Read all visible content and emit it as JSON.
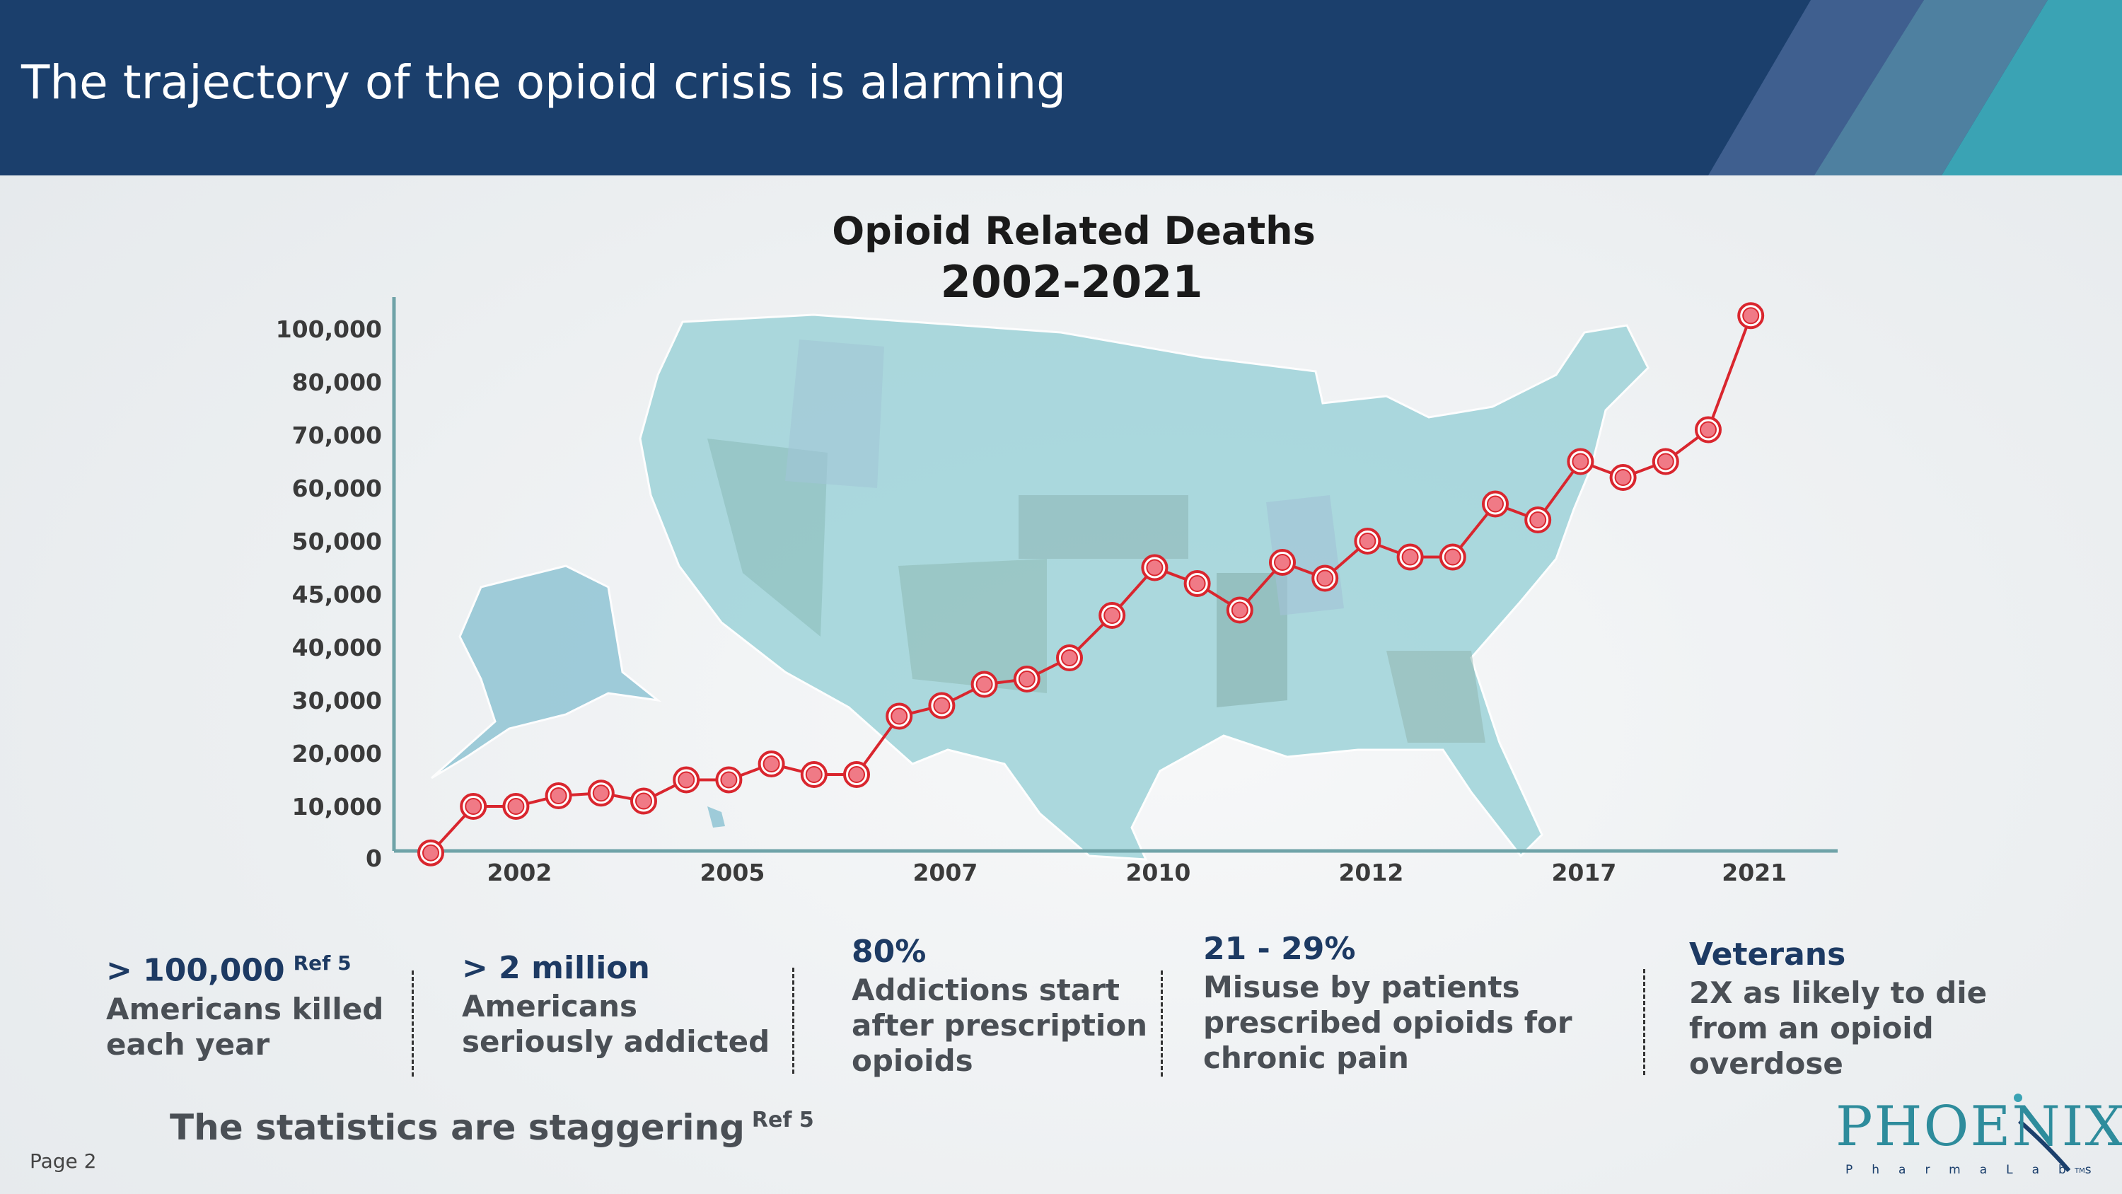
{
  "header": {
    "title": "The trajectory of the opioid crisis is alarming"
  },
  "colors": {
    "header_bg": "#1b3f6c",
    "line": "#d9262e",
    "marker_fill": "#f07a86",
    "axis": "#6fa3a8",
    "map": "#8fcdd3"
  },
  "chart_data": {
    "type": "line",
    "title": "Opioid Related Deaths",
    "subtitle": "2002-2021",
    "background_image": "map-of-united-states",
    "y_ticks": [
      "0",
      "10,000",
      "20,000",
      "30,000",
      "40,000",
      "45,000",
      "50,000",
      "60,000",
      "70,000",
      "80,000",
      "100,000"
    ],
    "x_ticks": [
      "2002",
      "2005",
      "2007",
      "2010",
      "2012",
      "2017",
      "2021"
    ],
    "x_tick_index": [
      2,
      7,
      12,
      17,
      22,
      27,
      31
    ],
    "y_scale": "categorical-ticks (non-linear spacing)",
    "series": [
      {
        "values": [
          1000,
          10000,
          10000,
          12000,
          12500,
          11000,
          15000,
          15000,
          18000,
          16000,
          16000,
          27000,
          29000,
          33000,
          34000,
          38000,
          43000,
          47500,
          46000,
          43500,
          48000,
          46500,
          50000,
          48500,
          48500,
          57000,
          54000,
          65000,
          62000,
          65000,
          71000,
          105000
        ]
      }
    ]
  },
  "stats": [
    {
      "headline": "> 100,000",
      "ref": "Ref 5",
      "body": [
        "Americans killed",
        "each year"
      ]
    },
    {
      "headline": "> 2 million",
      "body": [
        "Americans",
        "seriously addicted"
      ]
    },
    {
      "headline": "80%",
      "body": [
        "Addictions start",
        "after prescription",
        "opioids"
      ]
    },
    {
      "headline": "21 - 29%",
      "body": [
        "Misuse by patients",
        "prescribed opioids for",
        "chronic pain"
      ]
    },
    {
      "headline": "Veterans",
      "body": [
        "2X as likely to die",
        "from an opioid",
        "overdose"
      ]
    }
  ],
  "footer": {
    "tagline": "The statistics are staggering",
    "tagline_ref": "Ref 5",
    "page": "Page 2",
    "logo_word": "PHOENIX",
    "logo_sub": "PharmaLabs",
    "logo_tm": "TM"
  }
}
